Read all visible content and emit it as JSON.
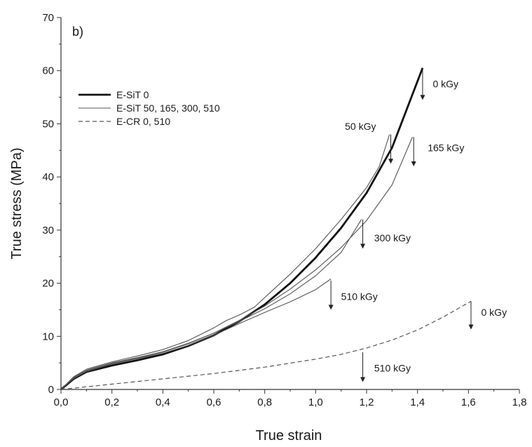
{
  "chart_data": {
    "type": "line",
    "panel_label": "b)",
    "xlabel": "True strain",
    "ylabel": "True stress (MPa)",
    "xlim": [
      0,
      1.8
    ],
    "ylim": [
      0,
      70
    ],
    "xticks": [
      0,
      0.2,
      0.4,
      0.6,
      0.8,
      1.0,
      1.2,
      1.4,
      1.6,
      1.8
    ],
    "yticks": [
      0,
      10,
      20,
      30,
      40,
      50,
      60,
      70
    ],
    "xtick_labels": [
      "0,0",
      "0,2",
      "0,4",
      "0,6",
      "0,8",
      "1,0",
      "1,2",
      "1,4",
      "1,6",
      "1,8"
    ],
    "ytick_labels": [
      "0",
      "10",
      "20",
      "30",
      "40",
      "50",
      "60",
      "70"
    ],
    "grid": false,
    "legend": {
      "placement": "top-left",
      "entries": [
        {
          "label": "E-SiT 0",
          "style": "thick"
        },
        {
          "label": "E-SiT 50, 165, 300, 510",
          "style": "thin"
        },
        {
          "label": "E-CR 0, 510",
          "style": "dashed"
        }
      ]
    },
    "series": [
      {
        "style": "thick",
        "x": [
          0,
          0.05,
          0.1,
          0.2,
          0.3,
          0.4,
          0.5,
          0.6,
          0.7,
          0.8,
          0.9,
          1.0,
          1.1,
          1.2,
          1.3,
          1.42
        ],
        "y": [
          0,
          2.0,
          3.3,
          4.5,
          5.5,
          6.6,
          8.2,
          10.2,
          12.8,
          16.0,
          20.0,
          24.8,
          30.4,
          37.0,
          45.5,
          60.5
        ]
      },
      {
        "style": "thin",
        "x": [
          0,
          0.05,
          0.1,
          0.2,
          0.3,
          0.4,
          0.5,
          0.6,
          0.65,
          0.7,
          0.76,
          0.8,
          0.9,
          1.0,
          1.1,
          1.2,
          1.25,
          1.29
        ],
        "y": [
          0,
          2.4,
          3.8,
          5.2,
          6.3,
          7.5,
          9.2,
          11.6,
          13.0,
          14.0,
          15.5,
          17.3,
          21.7,
          26.5,
          32.0,
          38.0,
          42.0,
          48.0
        ]
      },
      {
        "style": "thin",
        "x": [
          0,
          0.05,
          0.1,
          0.2,
          0.3,
          0.4,
          0.5,
          0.6,
          0.7,
          0.8,
          0.9,
          1.0,
          1.1,
          1.2,
          1.3,
          1.38
        ],
        "y": [
          0,
          2.2,
          3.5,
          4.9,
          5.9,
          7.0,
          8.6,
          10.6,
          13.0,
          15.7,
          18.9,
          22.5,
          26.7,
          31.8,
          38.5,
          47.5
        ]
      },
      {
        "style": "thin",
        "x": [
          0,
          0.05,
          0.1,
          0.2,
          0.3,
          0.4,
          0.5,
          0.6,
          0.7,
          0.8,
          0.9,
          1.0,
          1.1,
          1.18
        ],
        "y": [
          0,
          2.3,
          3.6,
          5.0,
          6.0,
          7.1,
          8.7,
          10.6,
          12.8,
          15.2,
          18.0,
          21.4,
          25.8,
          32.0
        ]
      },
      {
        "style": "thin",
        "x": [
          0,
          0.05,
          0.1,
          0.2,
          0.3,
          0.4,
          0.5,
          0.6,
          0.7,
          0.8,
          0.9,
          1.0,
          1.06
        ],
        "y": [
          0,
          2.1,
          3.4,
          4.8,
          5.8,
          6.8,
          8.3,
          10.2,
          12.4,
          14.5,
          16.5,
          18.8,
          20.8
        ]
      },
      {
        "style": "dashed",
        "x": [
          0,
          0.2,
          0.4,
          0.6,
          0.8,
          1.0,
          1.1,
          1.2,
          1.3,
          1.4,
          1.5,
          1.61
        ],
        "y": [
          0,
          1.0,
          2.0,
          3.0,
          4.2,
          5.7,
          6.6,
          7.8,
          9.3,
          11.2,
          13.6,
          16.6
        ]
      }
    ],
    "annotations": [
      {
        "text": "0 kGy",
        "arrow_x": 1.42,
        "arrow_from": 60.5,
        "arrow_to": 54.5,
        "label_x": 1.46,
        "label_y": 57.5
      },
      {
        "text": "50 kGy",
        "arrow_x": 1.295,
        "arrow_from": 48.0,
        "arrow_to": 42.5,
        "label_x": 1.115,
        "label_y": 49.5
      },
      {
        "text": "165 kGy",
        "arrow_x": 1.385,
        "arrow_from": 47.5,
        "arrow_to": 42.0,
        "label_x": 1.44,
        "label_y": 45.5
      },
      {
        "text": "300 kGy",
        "arrow_x": 1.185,
        "arrow_from": 32.0,
        "arrow_to": 26.5,
        "label_x": 1.23,
        "label_y": 28.5
      },
      {
        "text": "510 kGy",
        "arrow_x": 1.06,
        "arrow_from": 20.5,
        "arrow_to": 15.0,
        "label_x": 1.1,
        "label_y": 17.5
      },
      {
        "text": "0 kGy",
        "arrow_x": 1.61,
        "arrow_from": 16.6,
        "arrow_to": 11.3,
        "label_x": 1.65,
        "label_y": 14.5
      },
      {
        "text": "510 kGy",
        "arrow_x": 1.185,
        "arrow_from": 7.0,
        "arrow_to": 1.4,
        "label_x": 1.23,
        "label_y": 4.0
      }
    ]
  }
}
